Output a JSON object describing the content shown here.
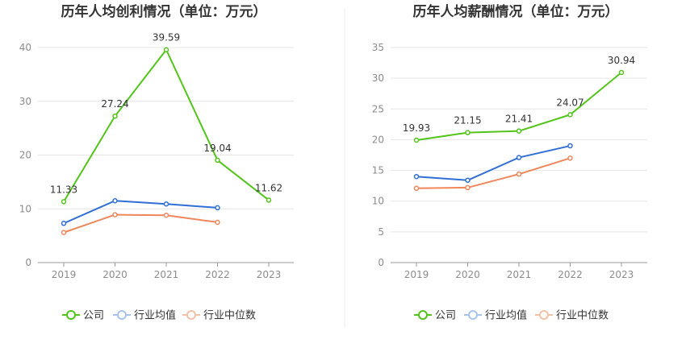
{
  "chart_data": [
    {
      "type": "line",
      "title": "历年人均创利情况（单位：万元）",
      "categories": [
        "2019",
        "2020",
        "2021",
        "2022",
        "2023"
      ],
      "ylim": [
        0,
        40
      ],
      "yticks": [
        0,
        10,
        20,
        30,
        40
      ],
      "xlabel": "",
      "ylabel": "",
      "grid": true,
      "legend_position": "bottom",
      "series": [
        {
          "name": "公司",
          "color": "#52c41a",
          "values": [
            11.33,
            27.24,
            39.59,
            19.04,
            11.62
          ],
          "labels": [
            "11.33",
            "27.24",
            "39.59",
            "19.04",
            "11.62"
          ]
        },
        {
          "name": "行业均值",
          "color": "#2f6fd6",
          "values": [
            7.3,
            11.5,
            10.9,
            10.2,
            null
          ]
        },
        {
          "name": "行业中位数",
          "color": "#f0865c",
          "values": [
            5.6,
            8.9,
            8.8,
            7.5,
            null
          ]
        }
      ]
    },
    {
      "type": "line",
      "title": "历年人均薪酬情况（单位：万元）",
      "categories": [
        "2019",
        "2020",
        "2021",
        "2022",
        "2023"
      ],
      "ylim": [
        0,
        35
      ],
      "yticks": [
        0,
        5,
        10,
        15,
        20,
        25,
        30,
        35
      ],
      "xlabel": "",
      "ylabel": "",
      "grid": true,
      "legend_position": "bottom",
      "series": [
        {
          "name": "公司",
          "color": "#52c41a",
          "values": [
            19.93,
            21.15,
            21.41,
            24.07,
            30.94
          ],
          "labels": [
            "19.93",
            "21.15",
            "21.41",
            "24.07",
            "30.94"
          ]
        },
        {
          "name": "行业均值",
          "color": "#2f6fd6",
          "values": [
            14.0,
            13.4,
            17.1,
            19.0,
            null
          ]
        },
        {
          "name": "行业中位数",
          "color": "#f0865c",
          "values": [
            12.1,
            12.2,
            14.4,
            17.0,
            null
          ]
        }
      ]
    }
  ],
  "legend": {
    "items": [
      {
        "name": "公司",
        "color": "#52c41a",
        "light": "#52c41a"
      },
      {
        "name": "行业均值",
        "color": "#2f6fd6",
        "light": "#a8c3ee"
      },
      {
        "name": "行业中位数",
        "color": "#f0865c",
        "light": "#f6c1a9"
      }
    ]
  }
}
